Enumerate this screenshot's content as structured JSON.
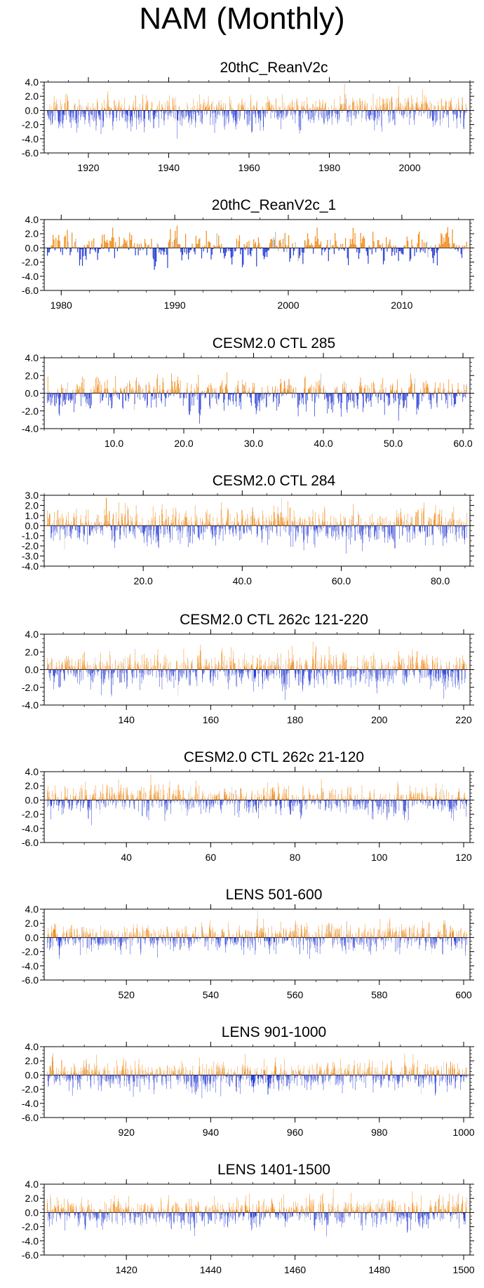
{
  "title": "NAM (Monthly)",
  "colors": {
    "positive": "#f28c1a",
    "negative": "#2a3fd8",
    "faint": "#bdbdbd",
    "axis": "#000000"
  },
  "chart_data": [
    {
      "type": "bar",
      "title": "20thC_ReanV2c",
      "xlim": [
        1909,
        2015
      ],
      "ylim": [
        -6,
        4
      ],
      "yticks": [
        4,
        2,
        0,
        -2,
        -4,
        -6
      ],
      "ytick_labels": [
        "4.0",
        "2.0",
        "0.0",
        "-2.0",
        "-4.0",
        "-6.0"
      ],
      "xticks": [
        1920,
        1940,
        1960,
        1980,
        2000
      ],
      "xtick_labels": [
        "1920",
        "1940",
        "1960",
        "1980",
        "2000"
      ],
      "n_points": 1272,
      "pos_scale": 1.0,
      "neg_scale": 1.3,
      "seed": 11
    },
    {
      "type": "bar",
      "title": "20thC_ReanV2c_1",
      "xlim": [
        1978.5,
        2016
      ],
      "ylim": [
        -6,
        4
      ],
      "yticks": [
        4,
        2,
        0,
        -2,
        -4,
        -6
      ],
      "ytick_labels": [
        "4.0",
        "2.0",
        "0.0",
        "-2.0",
        "-4.0",
        "-6.0"
      ],
      "xticks": [
        1980,
        1990,
        2000,
        2010
      ],
      "xtick_labels": [
        "1980",
        "1990",
        "2000",
        "2010"
      ],
      "n_points": 444,
      "pos_scale": 1.2,
      "neg_scale": 1.1,
      "seed": 23
    },
    {
      "type": "bar",
      "title": "CESM2.0 CTL 285",
      "xlim": [
        0,
        61
      ],
      "ylim": [
        -4,
        4
      ],
      "yticks": [
        4,
        2,
        0,
        -2,
        -4
      ],
      "ytick_labels": [
        "4.0",
        "2.0",
        "0.0",
        "-2.0",
        "-4.0"
      ],
      "xticks": [
        10,
        20,
        30,
        40,
        50,
        60
      ],
      "xtick_labels": [
        "10.0",
        "20.0",
        "30.0",
        "40.0",
        "50.0",
        "60.0"
      ],
      "n_points": 720,
      "pos_scale": 1.0,
      "neg_scale": 1.1,
      "seed": 37
    },
    {
      "type": "bar",
      "title": "CESM2.0 CTL 284",
      "xlim": [
        0,
        86
      ],
      "ylim": [
        -4,
        3
      ],
      "yticks": [
        3,
        2,
        1,
        0,
        -1,
        -2,
        -3,
        -4
      ],
      "ytick_labels": [
        "3.0",
        "2.0",
        "1.0",
        "0.0",
        "-1.0",
        "-2.0",
        "-3.0",
        "-4.0"
      ],
      "xticks": [
        20,
        40,
        60,
        80
      ],
      "xtick_labels": [
        "20.0",
        "40.0",
        "60.0",
        "80.0"
      ],
      "n_points": 1020,
      "pos_scale": 1.0,
      "neg_scale": 1.0,
      "seed": 41
    },
    {
      "type": "bar",
      "title": "CESM2.0 CTL 262c 121-220",
      "xlim": [
        120.5,
        221.5
      ],
      "ylim": [
        -4,
        4
      ],
      "yticks": [
        4,
        2,
        0,
        -2,
        -4
      ],
      "ytick_labels": [
        "4.0",
        "2.0",
        "0.0",
        "-2.0",
        "-4.0"
      ],
      "xticks": [
        140,
        160,
        180,
        200,
        220
      ],
      "xtick_labels": [
        "140",
        "160",
        "180",
        "200",
        "220"
      ],
      "n_points": 1200,
      "pos_scale": 1.0,
      "neg_scale": 1.1,
      "seed": 53
    },
    {
      "type": "bar",
      "title": "CESM2.0 CTL 262c 21-120",
      "xlim": [
        20.5,
        121.5
      ],
      "ylim": [
        -6,
        4
      ],
      "yticks": [
        4,
        2,
        0,
        -2,
        -4,
        -6
      ],
      "ytick_labels": [
        "4.0",
        "2.0",
        "0.0",
        "-2.0",
        "-4.0",
        "-6.0"
      ],
      "xticks": [
        40,
        60,
        80,
        100,
        120
      ],
      "xtick_labels": [
        "40",
        "60",
        "80",
        "100",
        "120"
      ],
      "n_points": 1200,
      "pos_scale": 1.0,
      "neg_scale": 1.1,
      "seed": 67
    },
    {
      "type": "bar",
      "title": "LENS 501-600",
      "xlim": [
        500.5,
        601.5
      ],
      "ylim": [
        -6,
        4
      ],
      "yticks": [
        4,
        2,
        0,
        -2,
        -4,
        -6
      ],
      "ytick_labels": [
        "4.0",
        "2.0",
        "0.0",
        "-2.0",
        "-4.0",
        "-6.0"
      ],
      "xticks": [
        520,
        540,
        560,
        580,
        600
      ],
      "xtick_labels": [
        "520",
        "540",
        "560",
        "580",
        "600"
      ],
      "n_points": 1200,
      "pos_scale": 1.0,
      "neg_scale": 1.1,
      "seed": 79
    },
    {
      "type": "bar",
      "title": "LENS 901-1000",
      "xlim": [
        900.5,
        1001.5
      ],
      "ylim": [
        -6,
        4
      ],
      "yticks": [
        4,
        2,
        0,
        -2,
        -4,
        -6
      ],
      "ytick_labels": [
        "4.0",
        "2.0",
        "0.0",
        "-2.0",
        "-4.0",
        "-6.0"
      ],
      "xticks": [
        920,
        940,
        960,
        980,
        1000
      ],
      "xtick_labels": [
        "920",
        "940",
        "960",
        "980",
        "1000"
      ],
      "n_points": 1200,
      "pos_scale": 1.0,
      "neg_scale": 1.1,
      "seed": 83
    },
    {
      "type": "bar",
      "title": "LENS 1401-1500",
      "xlim": [
        1400.5,
        1501.5
      ],
      "ylim": [
        -6,
        4
      ],
      "yticks": [
        4,
        2,
        0,
        -2,
        -4,
        -6
      ],
      "ytick_labels": [
        "4.0",
        "2.0",
        "0.0",
        "-2.0",
        "-4.0",
        "-6.0"
      ],
      "xticks": [
        1420,
        1440,
        1460,
        1480,
        1500
      ],
      "xtick_labels": [
        "1420",
        "1440",
        "1460",
        "1480",
        "1500"
      ],
      "n_points": 1200,
      "pos_scale": 1.0,
      "neg_scale": 1.1,
      "seed": 97
    }
  ]
}
